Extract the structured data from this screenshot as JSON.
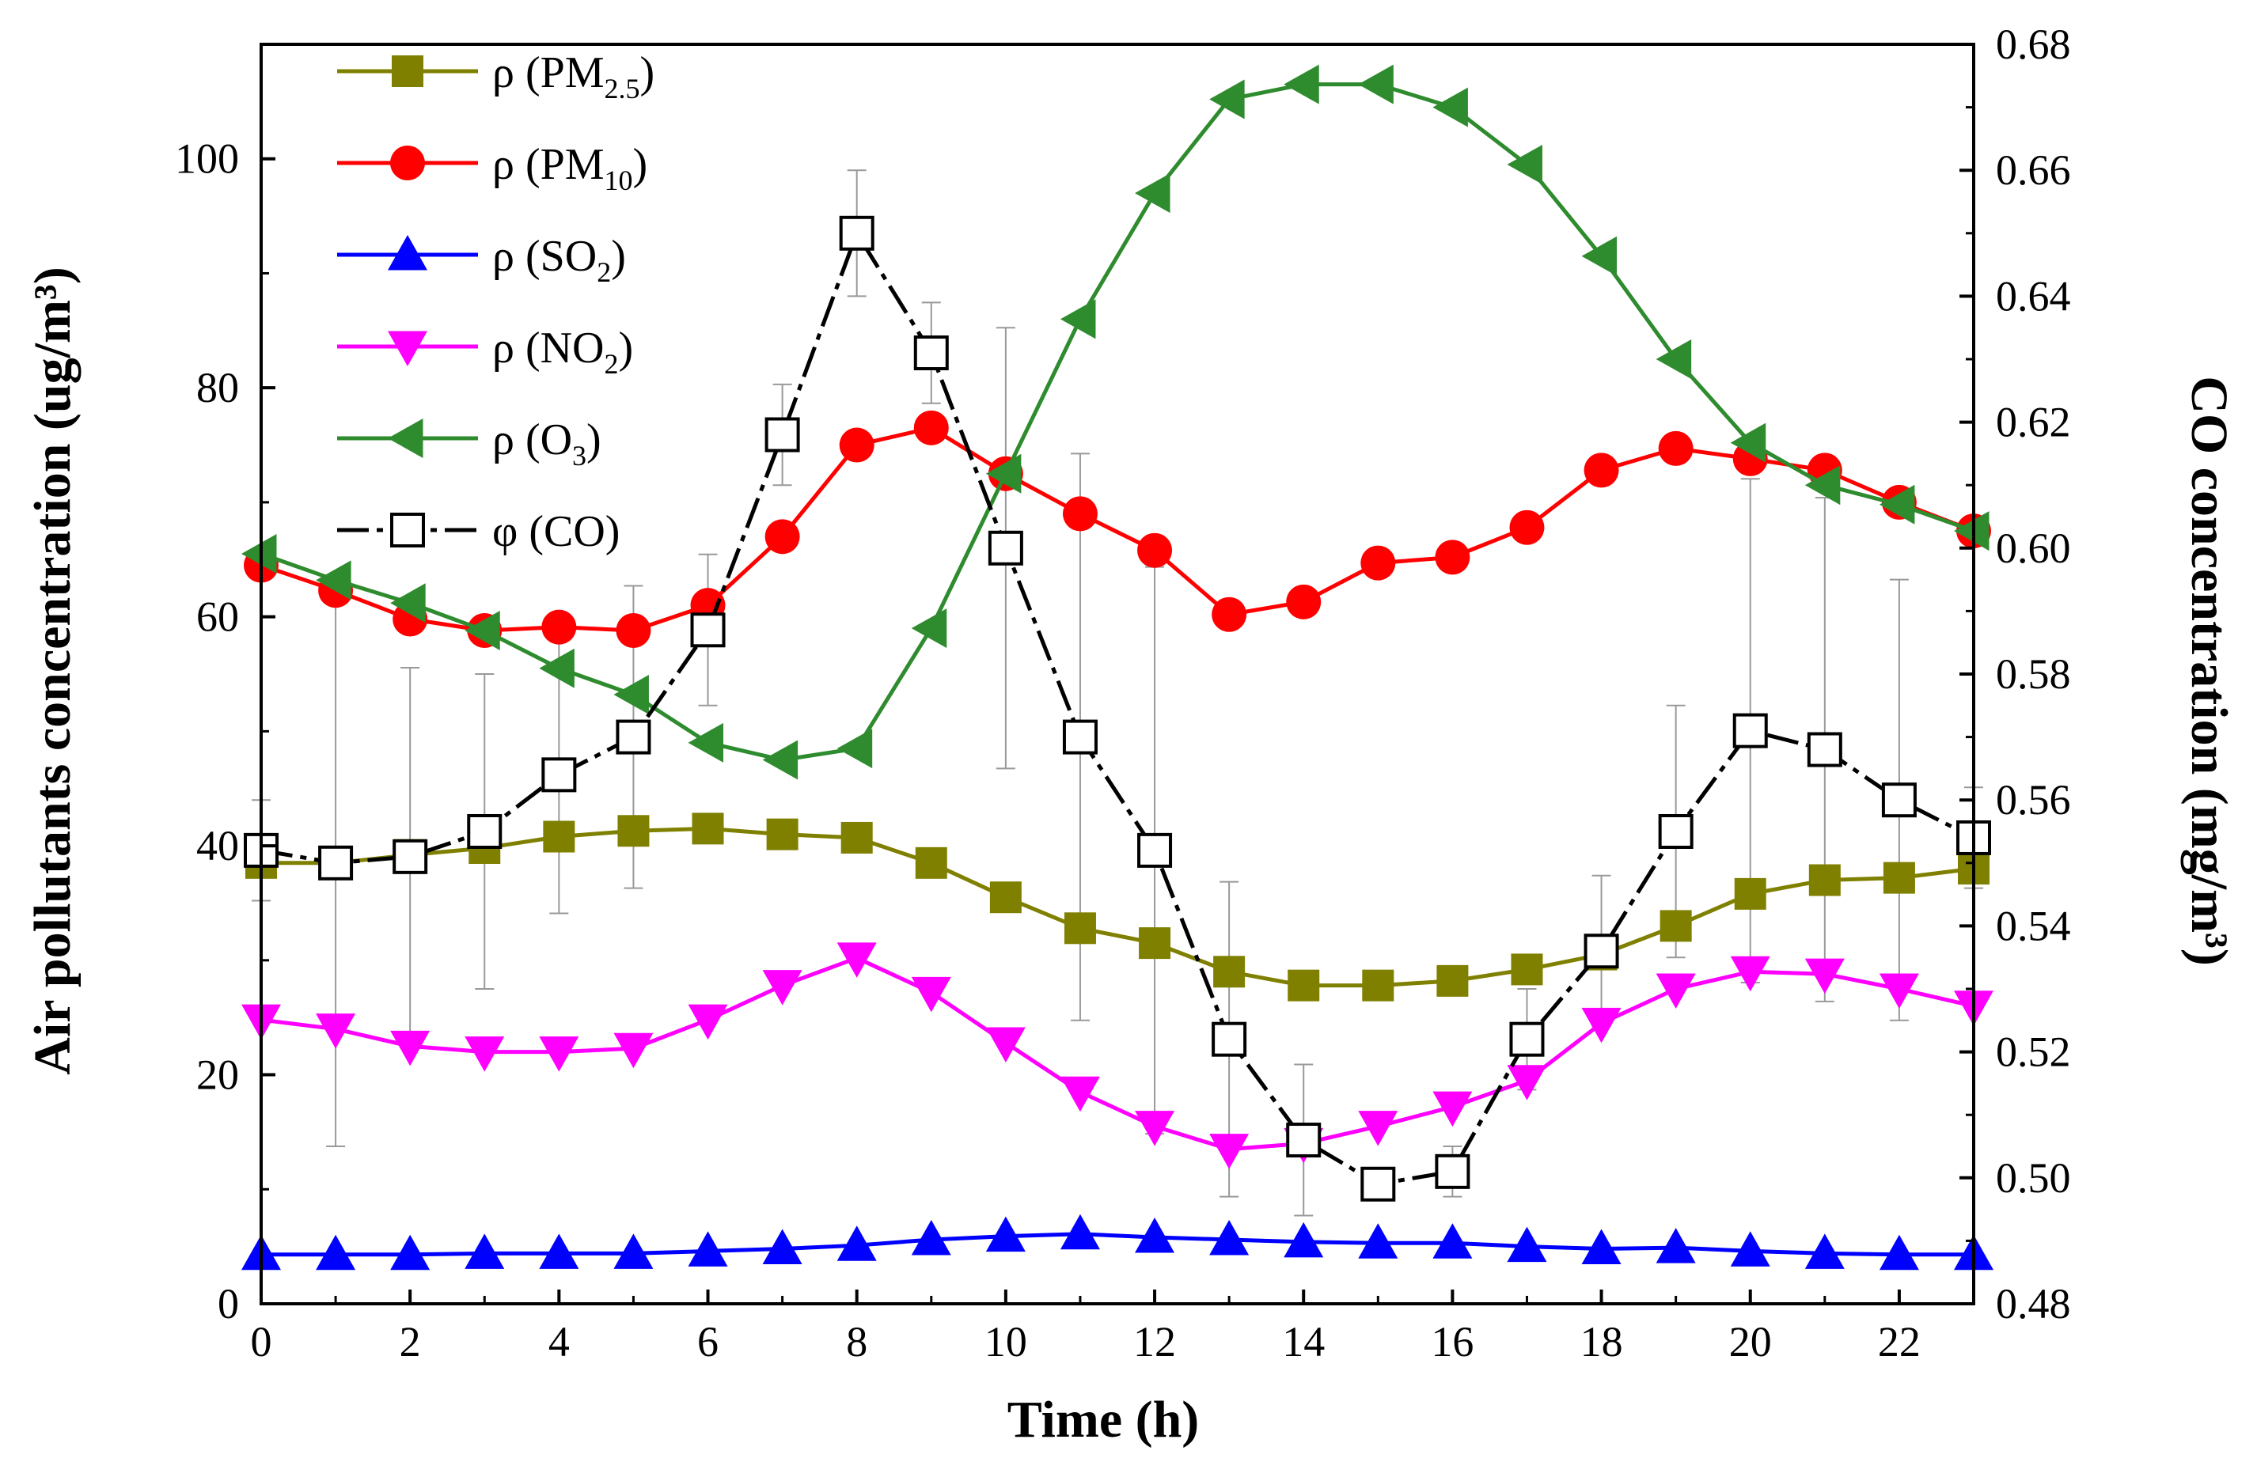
{
  "chart_data": {
    "type": "line",
    "x": [
      0,
      1,
      2,
      3,
      4,
      5,
      6,
      7,
      8,
      9,
      10,
      11,
      12,
      13,
      14,
      15,
      16,
      17,
      18,
      19,
      20,
      21,
      22,
      23
    ],
    "xlabel": "Time (h)",
    "ylabel": "Air pollutants concentration (ug/m³)",
    "y2label": "CO concentration (mg/m³)",
    "xlim": [
      0,
      23
    ],
    "ylim": [
      0,
      110
    ],
    "y2lim": [
      0.48,
      0.68
    ],
    "x_ticks": [
      "0",
      "2",
      "4",
      "6",
      "8",
      "10",
      "12",
      "14",
      "16",
      "18",
      "20",
      "22"
    ],
    "y_ticks": [
      "0",
      "20",
      "40",
      "60",
      "80",
      "100"
    ],
    "y2_ticks": [
      "0.48",
      "0.50",
      "0.52",
      "0.54",
      "0.56",
      "0.58",
      "0.60",
      "0.62",
      "0.64",
      "0.66",
      "0.68"
    ],
    "legend_position": "top-left",
    "series": [
      {
        "name": "PM2.5",
        "label_prefix": "ρ (PM",
        "label_sub": "2.5",
        "label_suffix": ")",
        "axis": "left",
        "color": "#808000",
        "marker": "square",
        "values": [
          38.5,
          38.5,
          39.2,
          39.8,
          40.8,
          41.3,
          41.5,
          41.0,
          40.7,
          38.5,
          35.5,
          32.8,
          31.5,
          29.0,
          27.8,
          27.8,
          28.2,
          29.2,
          30.5,
          33.0,
          35.8,
          37.0,
          37.2,
          38.0
        ]
      },
      {
        "name": "PM10",
        "label_prefix": "ρ (PM",
        "label_sub": "10",
        "label_suffix": ")",
        "axis": "left",
        "color": "#ff0000",
        "marker": "circle",
        "values": [
          64.5,
          62.3,
          59.8,
          58.8,
          59.1,
          58.8,
          61.0,
          67.0,
          75.0,
          76.5,
          72.5,
          69.0,
          65.8,
          60.2,
          61.3,
          64.7,
          65.2,
          67.8,
          72.8,
          74.7,
          73.8,
          72.8,
          70.0,
          67.5
        ]
      },
      {
        "name": "SO2",
        "label_prefix": "ρ (SO",
        "label_sub": "2",
        "label_suffix": ")",
        "axis": "left",
        "color": "#0000ff",
        "marker": "triangle-up",
        "values": [
          4.3,
          4.3,
          4.3,
          4.4,
          4.4,
          4.4,
          4.6,
          4.8,
          5.1,
          5.6,
          5.9,
          6.1,
          5.8,
          5.6,
          5.4,
          5.3,
          5.3,
          5.0,
          4.8,
          4.9,
          4.6,
          4.4,
          4.3,
          4.3
        ]
      },
      {
        "name": "NO2",
        "label_prefix": "ρ (NO",
        "label_sub": "2",
        "label_suffix": ")",
        "axis": "left",
        "color": "#ff00ff",
        "marker": "triangle-down",
        "values": [
          24.8,
          24.0,
          22.5,
          22.0,
          22.0,
          22.3,
          24.8,
          27.8,
          30.2,
          27.2,
          22.8,
          18.5,
          15.5,
          13.5,
          14.0,
          15.5,
          17.2,
          19.5,
          24.5,
          27.5,
          29.0,
          28.8,
          27.5,
          26.0
        ]
      },
      {
        "name": "O3",
        "label_prefix": "ρ (O",
        "label_sub": "3",
        "label_suffix": ")",
        "axis": "left",
        "color": "#2e8b2e",
        "marker": "triangle-left",
        "values": [
          65.5,
          63.2,
          61.2,
          58.8,
          55.5,
          53.2,
          49.0,
          47.5,
          48.5,
          59.0,
          72.5,
          86.0,
          97.0,
          105.2,
          106.5,
          106.5,
          104.5,
          99.5,
          91.5,
          82.5,
          75.2,
          71.5,
          69.8,
          67.5
        ]
      },
      {
        "name": "CO",
        "label_prefix": "φ (CO)",
        "label_sub": "",
        "label_suffix": "",
        "axis": "right",
        "color": "#000000",
        "marker": "open-square",
        "line_style": "dash-dot",
        "values": [
          0.552,
          0.55,
          0.551,
          0.555,
          0.564,
          0.57,
          0.587,
          0.618,
          0.65,
          0.631,
          0.6,
          0.57,
          0.552,
          0.522,
          0.506,
          0.499,
          0.501,
          0.522,
          0.536,
          0.555,
          0.571,
          0.568,
          0.56,
          0.554
        ],
        "err": [
          0.008,
          0.045,
          0.03,
          0.025,
          0.022,
          0.024,
          0.012,
          0.008,
          0.01,
          0.008,
          0.035,
          0.045,
          0.045,
          0.025,
          0.012,
          0.002,
          0.004,
          0.008,
          0.012,
          0.02,
          0.04,
          0.04,
          0.035,
          0.008
        ]
      }
    ]
  }
}
